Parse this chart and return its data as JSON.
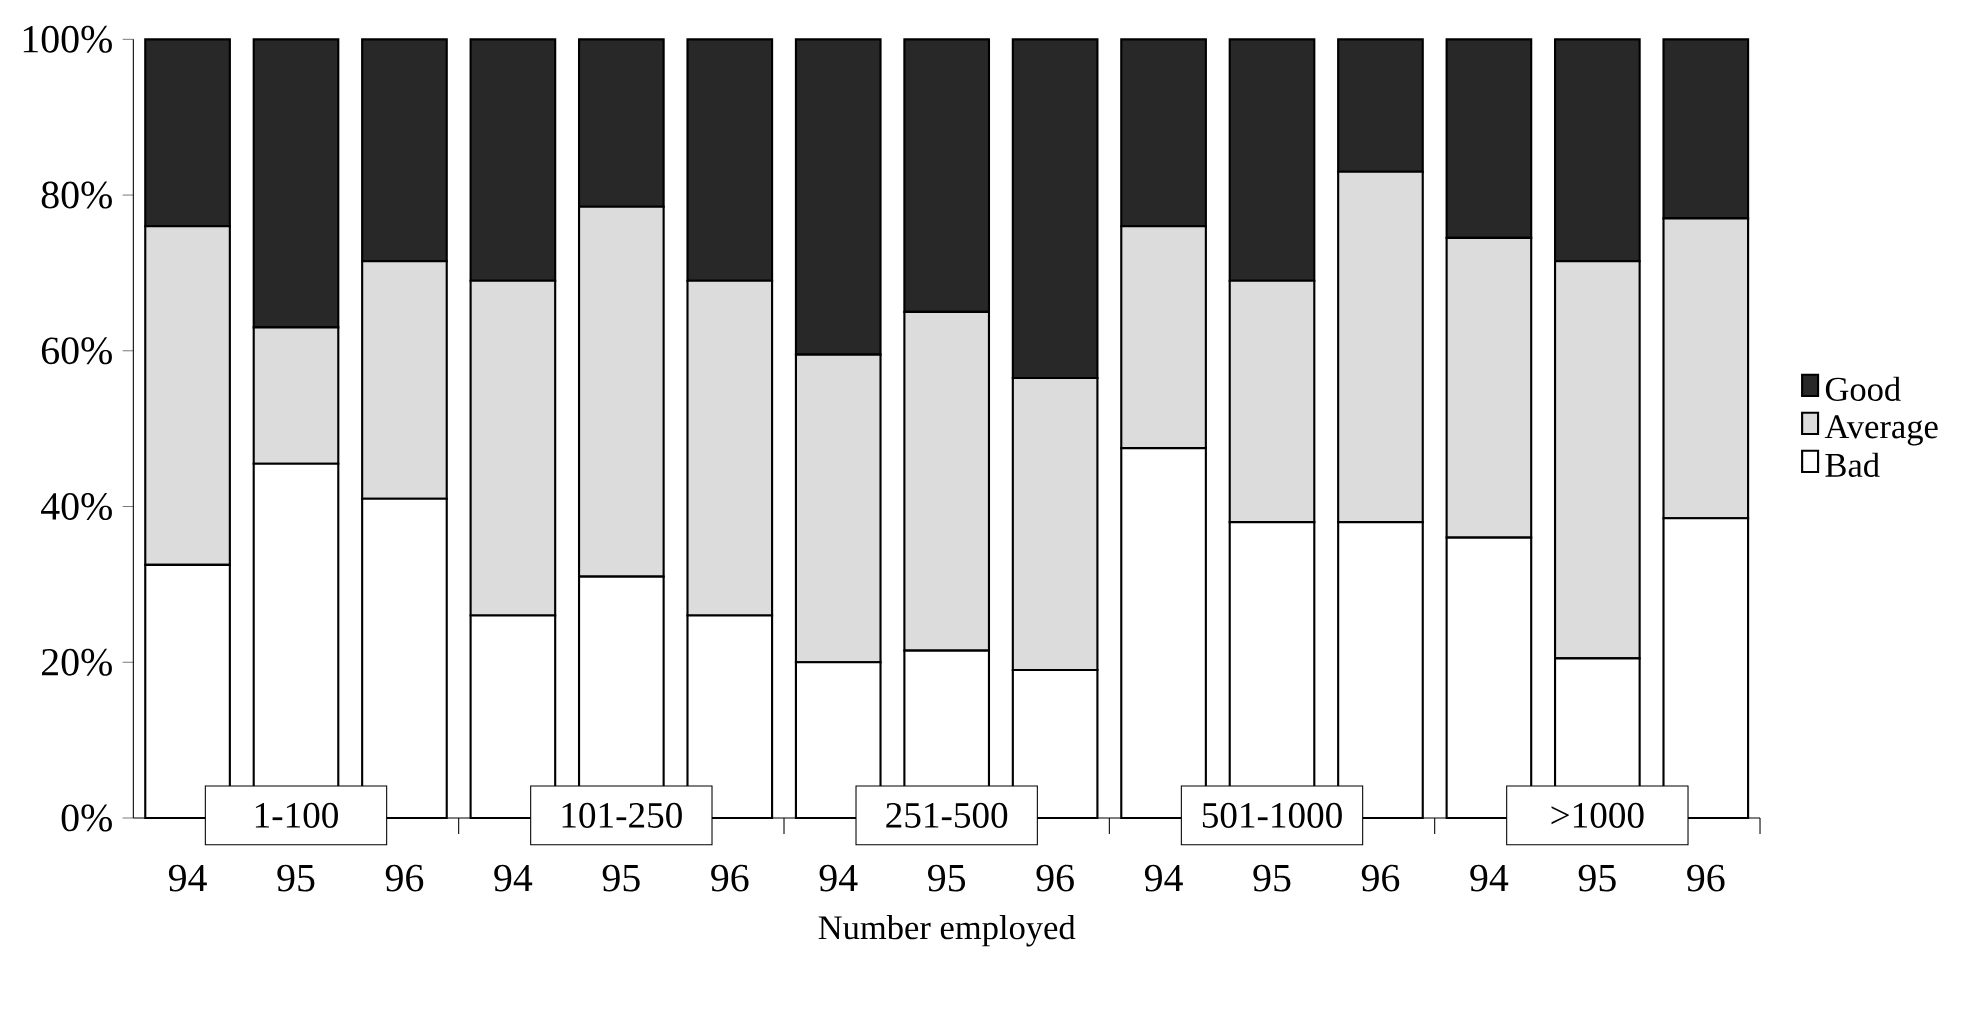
{
  "chart_data": {
    "type": "bar",
    "stacked": true,
    "xlabel": "Number employed",
    "categories": [
      "94",
      "95",
      "96",
      "94",
      "95",
      "96",
      "94",
      "95",
      "96",
      "94",
      "95",
      "96",
      "94",
      "95",
      "96"
    ],
    "series": [
      {
        "name": "Bad",
        "color": "#ffffff",
        "values": [
          32.5,
          45.5,
          41,
          26,
          31,
          26,
          20,
          21.5,
          19,
          47.5,
          38,
          38,
          36,
          20.5,
          38.5
        ]
      },
      {
        "name": "Average",
        "color": "#dcdcdc",
        "values": [
          43.5,
          17.5,
          30.5,
          43,
          47.5,
          43,
          39.5,
          43.5,
          37.5,
          28.5,
          31,
          45,
          38.5,
          51,
          38.5
        ]
      },
      {
        "name": "Good",
        "color": "#282828",
        "values": [
          24,
          37,
          28.5,
          31,
          21.5,
          31,
          40.5,
          35,
          43.5,
          24,
          31,
          17,
          25.5,
          28.5,
          23
        ]
      }
    ],
    "ylim": [
      0,
      100
    ],
    "yticks": [
      {
        "value": 0,
        "label": "0%"
      },
      {
        "value": 20,
        "label": "20%"
      },
      {
        "value": 40,
        "label": "40%"
      },
      {
        "value": 60,
        "label": "60%"
      },
      {
        "value": 80,
        "label": "80%"
      },
      {
        "value": 100,
        "label": "100%"
      }
    ],
    "annotations": [
      "1-100",
      "101-250",
      "251-500",
      "501-1000",
      ">1000"
    ],
    "legend": "right",
    "grid": false
  }
}
